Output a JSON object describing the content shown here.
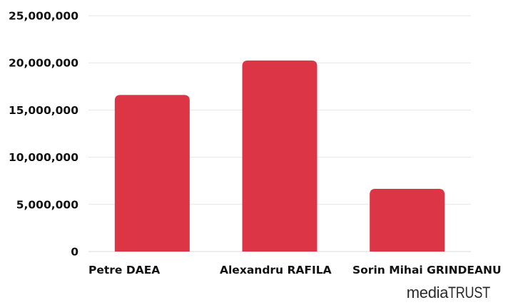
{
  "chart_data": {
    "type": "bar",
    "categories": [
      "Petre DAEA",
      "Alexandru RAFILA",
      "Sorin Mihai GRINDEANU"
    ],
    "values": [
      16600000,
      20250000,
      6650000
    ],
    "ylim": [
      0,
      25000000
    ],
    "yticks": [
      0,
      5000000,
      10000000,
      15000000,
      20000000,
      25000000
    ],
    "ytick_labels": [
      "0",
      "5,000,000",
      "10,000,000",
      "15,000,000",
      "20,000,000",
      "25,000,000"
    ],
    "grid": true,
    "bar_color": "#dc3545",
    "title": "",
    "xlabel": "",
    "ylabel": ""
  },
  "branding": {
    "logo_prefix": "media",
    "logo_suffix": "TRUST"
  }
}
